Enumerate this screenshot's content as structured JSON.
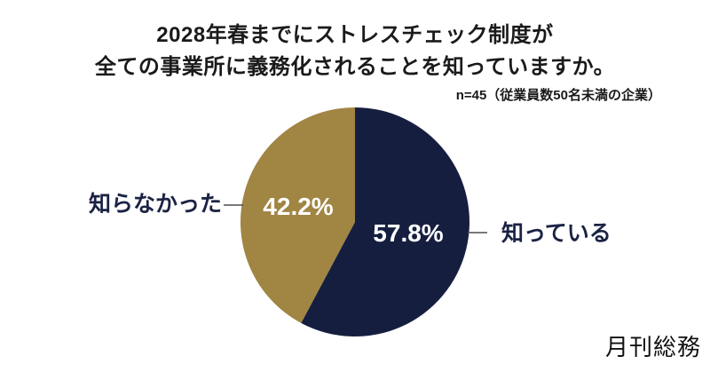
{
  "title": {
    "line1": "2028年春までにストレスチェック制度が",
    "line2": "全ての事業所に義務化されることを知っていますか。"
  },
  "sample_note": "n=45（従業員数50名未満の企業）",
  "logo": "月刊総務",
  "colors": {
    "navy": "#161e40",
    "gold": "#a08543",
    "category_label_text": "#1b2344",
    "percent_label_text": "#ffffff",
    "leader_line": "#4d4d4d",
    "title_text": "#1a1a1a",
    "background": "#ffffff"
  },
  "chart_data": {
    "type": "pie",
    "title": "2028年春までにストレスチェック制度が全ての事業所に義務化されることを知っていますか。",
    "sample_size": 45,
    "sample_note": "n=45（従業員数50名未満の企業）",
    "unit": "%",
    "start_angle_deg": 0,
    "direction": "clockwise",
    "slices": [
      {
        "key": "aware",
        "label": "知っている",
        "value": 57.8,
        "pct_label": "57.8%",
        "color": "#161e40"
      },
      {
        "key": "unaware",
        "label": "知らなかった",
        "value": 42.2,
        "pct_label": "42.2%",
        "color": "#a08543"
      }
    ]
  }
}
